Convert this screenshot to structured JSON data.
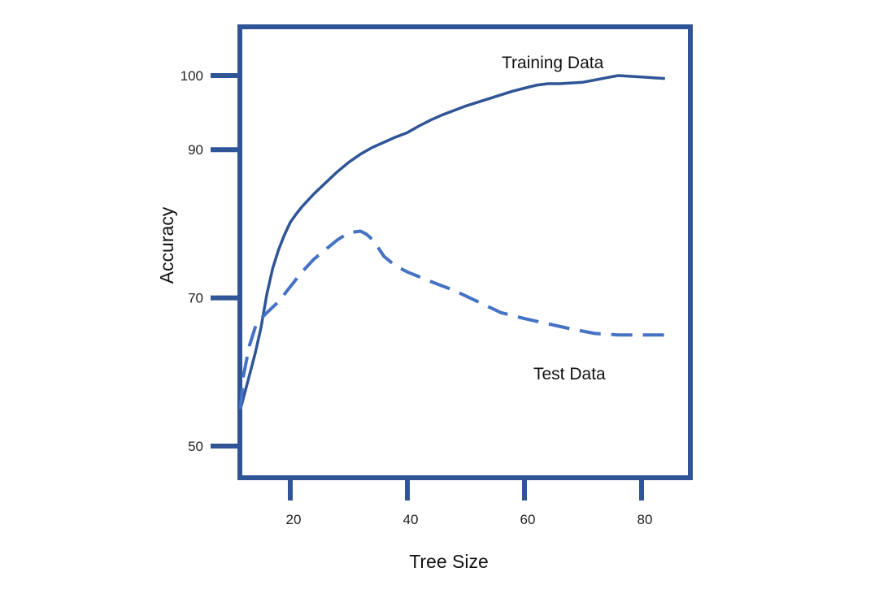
{
  "chart_data": {
    "type": "line",
    "xlabel": "Tree Size",
    "ylabel": "Accuracy",
    "xticks": [
      20,
      40,
      60,
      80
    ],
    "yticks": [
      50,
      70,
      90,
      100
    ],
    "grid": false,
    "colors": {
      "frame": "#2f5597",
      "training": "#2f5597",
      "test": "#4472c4"
    },
    "series": [
      {
        "name": "Training Data",
        "style": "solid",
        "x": [
          11.5,
          12,
          13,
          14,
          15,
          16,
          17,
          18,
          19,
          20,
          21,
          22,
          24,
          26,
          28,
          30,
          32,
          34,
          36,
          38,
          40,
          42,
          44,
          46,
          48,
          50,
          52,
          54,
          56,
          58,
          60,
          62,
          64,
          66,
          68,
          70,
          72,
          74,
          76,
          78,
          80,
          82,
          84
        ],
        "y": [
          55,
          56.5,
          59.5,
          62.5,
          66,
          70.5,
          74,
          76.5,
          78.5,
          80.2,
          81.3,
          82.3,
          84,
          85.5,
          87,
          88.3,
          89.4,
          90.3,
          91,
          91.7,
          92.3,
          93.2,
          94,
          94.7,
          95.3,
          95.9,
          96.4,
          96.9,
          97.4,
          97.9,
          98.3,
          98.7,
          98.9,
          98.9,
          99.0,
          99.1,
          99.4,
          99.7,
          100.0,
          99.9,
          99.8,
          99.7,
          99.6
        ]
      },
      {
        "name": "Test Data",
        "style": "dashed",
        "x": [
          11.5,
          12,
          13,
          14,
          15,
          16,
          18,
          20,
          22,
          24,
          26,
          28,
          30,
          32,
          33,
          34,
          35,
          36,
          38,
          40,
          44,
          48,
          52,
          56,
          60,
          64,
          68,
          72,
          76,
          80,
          84
        ],
        "y": [
          55,
          59.5,
          63.5,
          66,
          67.2,
          68,
          69.5,
          71.5,
          73.5,
          75.2,
          76.5,
          77.8,
          78.8,
          79.0,
          78.6,
          77.9,
          76.8,
          75.6,
          74.3,
          73.5,
          72.2,
          71,
          69.5,
          68,
          67.2,
          66.5,
          65.8,
          65.2,
          65.0,
          65.0,
          65.0
        ]
      }
    ]
  }
}
